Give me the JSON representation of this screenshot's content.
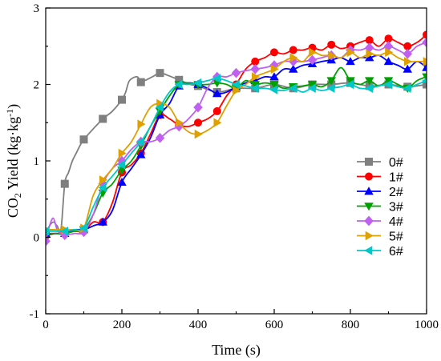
{
  "chart_data": {
    "type": "line",
    "xlabel": "Time (s)",
    "ylabel_main": "CO",
    "ylabel_sub": "2",
    "ylabel_rest": " Yield (kg·kg",
    "ylabel_sup": "-1",
    "ylabel_close": ")",
    "xlim": [
      0,
      1000
    ],
    "ylim": [
      -1,
      3
    ],
    "x_ticks": [
      0,
      200,
      400,
      600,
      800,
      1000
    ],
    "y_ticks": [
      -1,
      0,
      1,
      2,
      3
    ],
    "grid": false,
    "legend_position": "right",
    "series": [
      {
        "name": "0#",
        "color": "#7f7f7f",
        "marker": "square",
        "x": [
          0,
          10,
          20,
          30,
          40,
          50,
          60,
          70,
          80,
          90,
          100,
          125,
          150,
          175,
          200,
          210,
          220,
          240,
          250,
          260,
          280,
          300,
          320,
          350,
          380,
          400,
          450,
          500,
          550,
          600,
          650,
          700,
          750,
          800,
          850,
          900,
          950,
          1000
        ],
        "y": [
          0.05,
          0.15,
          0.2,
          0.15,
          0.1,
          0.7,
          0.85,
          1.0,
          1.1,
          1.2,
          1.28,
          1.42,
          1.55,
          1.65,
          1.8,
          1.9,
          2.05,
          2.1,
          2.03,
          2.05,
          2.1,
          2.15,
          2.12,
          2.06,
          2.0,
          1.98,
          1.9,
          1.95,
          1.95,
          2.0,
          1.95,
          2.0,
          2.0,
          2.02,
          1.98,
          2.0,
          1.97,
          2.0
        ],
        "marker_x": [
          0,
          50,
          100,
          150,
          200,
          250,
          300,
          350,
          400,
          450,
          500,
          550,
          600,
          650,
          700,
          750,
          800,
          850,
          900,
          950,
          1000
        ],
        "marker_y": [
          0.05,
          0.7,
          1.28,
          1.55,
          1.8,
          2.03,
          2.15,
          2.06,
          1.98,
          1.9,
          1.95,
          1.95,
          2.0,
          1.95,
          2.0,
          2.0,
          2.02,
          1.98,
          2.0,
          1.97,
          2.0
        ]
      },
      {
        "name": "1#",
        "color": "#ff0000",
        "marker": "circle",
        "x": [
          0,
          25,
          50,
          75,
          100,
          125,
          150,
          175,
          200,
          225,
          250,
          275,
          300,
          325,
          350,
          375,
          400,
          425,
          450,
          475,
          500,
          525,
          550,
          575,
          600,
          625,
          650,
          675,
          700,
          725,
          750,
          775,
          800,
          825,
          850,
          875,
          900,
          925,
          950,
          975,
          1000
        ],
        "y": [
          0.02,
          0.05,
          0.05,
          0.08,
          0.08,
          0.2,
          0.2,
          0.45,
          0.85,
          0.95,
          1.1,
          1.35,
          1.6,
          1.55,
          1.47,
          1.45,
          1.5,
          1.55,
          1.65,
          1.85,
          2.0,
          2.2,
          2.3,
          2.35,
          2.42,
          2.4,
          2.45,
          2.45,
          2.48,
          2.45,
          2.52,
          2.47,
          2.5,
          2.55,
          2.58,
          2.5,
          2.6,
          2.55,
          2.5,
          2.55,
          2.65
        ],
        "marker_x": [
          0,
          50,
          100,
          150,
          200,
          250,
          300,
          350,
          400,
          450,
          500,
          550,
          600,
          650,
          700,
          750,
          800,
          850,
          900,
          950,
          1000
        ],
        "marker_y": [
          0.02,
          0.05,
          0.08,
          0.2,
          0.85,
          1.1,
          1.6,
          1.47,
          1.5,
          1.65,
          2.0,
          2.3,
          2.42,
          2.45,
          2.48,
          2.52,
          2.5,
          2.58,
          2.6,
          2.5,
          2.65
        ]
      },
      {
        "name": "2#",
        "color": "#0000ff",
        "marker": "triangle-up",
        "x": [
          0,
          25,
          50,
          75,
          100,
          125,
          150,
          175,
          200,
          225,
          250,
          275,
          300,
          325,
          350,
          375,
          400,
          425,
          450,
          475,
          500,
          525,
          550,
          575,
          600,
          625,
          650,
          675,
          700,
          725,
          750,
          775,
          800,
          825,
          850,
          875,
          900,
          925,
          950,
          975,
          1000
        ],
        "y": [
          0.05,
          0.05,
          0.05,
          0.1,
          0.1,
          0.15,
          0.2,
          0.35,
          0.72,
          0.9,
          1.08,
          1.3,
          1.6,
          1.75,
          1.98,
          2.02,
          2.0,
          1.95,
          1.88,
          1.9,
          1.97,
          2.02,
          2.05,
          2.1,
          2.1,
          2.2,
          2.2,
          2.25,
          2.27,
          2.3,
          2.32,
          2.35,
          2.3,
          2.35,
          2.35,
          2.38,
          2.3,
          2.25,
          2.2,
          2.3,
          2.22
        ],
        "marker_x": [
          0,
          50,
          100,
          150,
          200,
          250,
          300,
          350,
          400,
          450,
          500,
          550,
          600,
          650,
          700,
          750,
          800,
          850,
          900,
          950,
          1000
        ],
        "marker_y": [
          0.05,
          0.05,
          0.1,
          0.2,
          0.72,
          1.08,
          1.6,
          1.98,
          2.0,
          1.88,
          1.97,
          2.05,
          2.1,
          2.2,
          2.27,
          2.32,
          2.3,
          2.35,
          2.3,
          2.2,
          2.22
        ]
      },
      {
        "name": "3#",
        "color": "#00a000",
        "marker": "triangle-down",
        "x": [
          0,
          25,
          50,
          75,
          100,
          125,
          150,
          175,
          200,
          225,
          250,
          275,
          300,
          325,
          350,
          375,
          400,
          425,
          450,
          475,
          500,
          525,
          550,
          575,
          600,
          625,
          650,
          675,
          700,
          725,
          750,
          775,
          800,
          825,
          850,
          875,
          900,
          925,
          950,
          975,
          1000
        ],
        "y": [
          0.05,
          0.05,
          0.05,
          0.08,
          0.1,
          0.3,
          0.58,
          0.7,
          0.88,
          1.0,
          1.2,
          1.45,
          1.65,
          1.85,
          2.0,
          2.02,
          2.0,
          2.0,
          2.02,
          2.0,
          1.95,
          2.05,
          2.0,
          2.02,
          2.0,
          1.95,
          1.97,
          1.98,
          2.0,
          1.97,
          2.05,
          2.22,
          2.05,
          2.0,
          2.05,
          1.98,
          2.05,
          2.0,
          1.95,
          2.05,
          2.1
        ],
        "marker_x": [
          0,
          50,
          100,
          150,
          200,
          250,
          300,
          350,
          400,
          450,
          500,
          550,
          600,
          650,
          700,
          750,
          800,
          850,
          900,
          950,
          1000
        ],
        "marker_y": [
          0.05,
          0.05,
          0.1,
          0.58,
          0.88,
          1.2,
          1.65,
          2.0,
          2.0,
          2.02,
          1.95,
          2.0,
          2.0,
          1.97,
          2.0,
          2.05,
          2.05,
          2.05,
          2.05,
          1.95,
          2.1
        ]
      },
      {
        "name": "4#",
        "color": "#c060f0",
        "marker": "diamond",
        "x": [
          0,
          10,
          20,
          30,
          40,
          50,
          75,
          100,
          125,
          150,
          175,
          200,
          225,
          250,
          275,
          300,
          325,
          350,
          375,
          400,
          425,
          450,
          475,
          500,
          525,
          550,
          575,
          600,
          625,
          650,
          675,
          700,
          725,
          750,
          775,
          800,
          825,
          850,
          875,
          900,
          925,
          950,
          975,
          1000
        ],
        "y": [
          -0.05,
          0.15,
          0.25,
          0.1,
          0.05,
          0.03,
          0.05,
          0.07,
          0.3,
          0.7,
          0.9,
          1.0,
          1.15,
          1.25,
          1.25,
          1.3,
          1.4,
          1.45,
          1.55,
          1.7,
          1.95,
          2.1,
          2.1,
          2.15,
          2.18,
          2.2,
          2.22,
          2.25,
          2.3,
          2.3,
          2.3,
          2.32,
          2.35,
          2.38,
          2.35,
          2.45,
          2.45,
          2.48,
          2.45,
          2.5,
          2.45,
          2.4,
          2.5,
          2.55
        ],
        "marker_x": [
          0,
          50,
          100,
          150,
          200,
          250,
          300,
          350,
          400,
          450,
          500,
          550,
          600,
          650,
          700,
          750,
          800,
          850,
          900,
          950,
          1000
        ],
        "marker_y": [
          -0.05,
          0.03,
          0.07,
          0.7,
          1.0,
          1.25,
          1.3,
          1.45,
          1.7,
          2.1,
          2.15,
          2.2,
          2.25,
          2.3,
          2.32,
          2.38,
          2.45,
          2.48,
          2.5,
          2.4,
          2.55
        ]
      },
      {
        "name": "5#",
        "color": "#e0a000",
        "marker": "triangle-right",
        "x": [
          0,
          25,
          50,
          75,
          100,
          125,
          150,
          175,
          200,
          225,
          250,
          275,
          300,
          325,
          350,
          375,
          400,
          425,
          450,
          475,
          500,
          525,
          550,
          575,
          600,
          625,
          650,
          675,
          700,
          725,
          750,
          775,
          800,
          825,
          850,
          875,
          900,
          925,
          950,
          975,
          1000
        ],
        "y": [
          0.1,
          0.1,
          0.1,
          0.1,
          0.12,
          0.55,
          0.75,
          0.9,
          1.1,
          1.25,
          1.48,
          1.7,
          1.75,
          1.7,
          1.5,
          1.38,
          1.35,
          1.4,
          1.5,
          1.72,
          1.92,
          2.0,
          2.1,
          2.15,
          2.2,
          2.3,
          2.35,
          2.3,
          2.42,
          2.38,
          2.38,
          2.35,
          2.42,
          2.35,
          2.4,
          2.38,
          2.42,
          2.35,
          2.3,
          2.3,
          2.3
        ],
        "marker_x": [
          0,
          50,
          100,
          150,
          200,
          250,
          300,
          350,
          400,
          450,
          500,
          550,
          600,
          650,
          700,
          750,
          800,
          850,
          900,
          950,
          1000
        ],
        "marker_y": [
          0.1,
          0.1,
          0.12,
          0.75,
          1.1,
          1.48,
          1.75,
          1.5,
          1.35,
          1.5,
          1.92,
          2.1,
          2.2,
          2.35,
          2.42,
          2.38,
          2.42,
          2.4,
          2.42,
          2.3,
          2.3
        ]
      },
      {
        "name": "6#",
        "color": "#00c8c8",
        "marker": "triangle-left",
        "x": [
          0,
          25,
          50,
          75,
          100,
          125,
          150,
          175,
          200,
          225,
          250,
          275,
          300,
          325,
          350,
          375,
          400,
          425,
          450,
          475,
          500,
          525,
          550,
          575,
          600,
          625,
          650,
          675,
          700,
          725,
          750,
          775,
          800,
          825,
          850,
          875,
          900,
          925,
          950,
          975,
          1000
        ],
        "y": [
          0.08,
          0.08,
          0.08,
          0.1,
          0.12,
          0.4,
          0.65,
          0.8,
          0.95,
          1.1,
          1.25,
          1.45,
          1.7,
          1.9,
          2.0,
          2.0,
          2.02,
          2.05,
          2.08,
          2.05,
          2.0,
          1.98,
          1.95,
          1.95,
          1.93,
          1.92,
          1.95,
          1.9,
          1.95,
          1.92,
          1.95,
          1.97,
          2.0,
          1.95,
          1.95,
          1.98,
          2.0,
          1.97,
          1.95,
          2.0,
          2.05
        ],
        "marker_x": [
          0,
          50,
          100,
          150,
          200,
          250,
          300,
          350,
          400,
          450,
          500,
          550,
          600,
          650,
          700,
          750,
          800,
          850,
          900,
          950,
          1000
        ],
        "marker_y": [
          0.08,
          0.08,
          0.12,
          0.65,
          0.95,
          1.25,
          1.7,
          2.0,
          2.02,
          2.08,
          2.0,
          1.95,
          1.93,
          1.95,
          1.95,
          1.95,
          2.0,
          1.95,
          2.0,
          1.95,
          2.05
        ]
      }
    ]
  }
}
